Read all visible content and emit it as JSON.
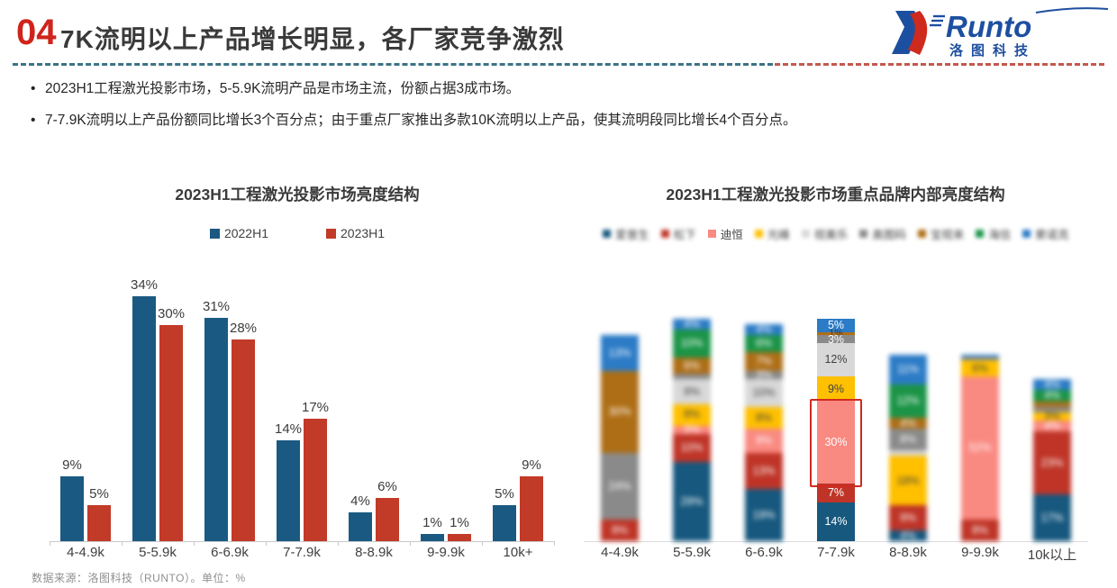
{
  "header": {
    "number": "04",
    "title": "7K流明以上产品增长明显，各厂家竞争激烈"
  },
  "logo": {
    "brand": "Runto",
    "subtitle": "洛图科技",
    "blue": "#1d4fa0",
    "red": "#ce2a1d"
  },
  "bullets": [
    "2023H1工程激光投影市场，5-5.9K流明产品是市场主流，份额占据3成市场。",
    "7-7.9K流明以上产品份额同比增长3个百分点；由于重点厂家推出多款10K流明以上产品，使其流明段同比增长4个百分点。"
  ],
  "footer": "数据来源：洛图科技（RUNTO）。单位：%",
  "chart_data": [
    {
      "type": "bar",
      "title": "2023H1工程激光投影市场亮度结构",
      "categories": [
        "4-4.9k",
        "5-5.9k",
        "6-6.9k",
        "7-7.9k",
        "8-8.9k",
        "9-9.9k",
        "10k+"
      ],
      "series": [
        {
          "name": "2022H1",
          "color": "#1a5a82",
          "values": [
            9,
            34,
            31,
            14,
            4,
            1,
            5
          ]
        },
        {
          "name": "2023H1",
          "color": "#c23a28",
          "values": [
            5,
            30,
            28,
            17,
            6,
            1,
            9
          ]
        }
      ],
      "unit": "%",
      "ylim": [
        0,
        35
      ],
      "grid": false,
      "legend_position": "top",
      "data_labels": true
    },
    {
      "type": "stacked-bar",
      "title": "2023H1工程激光投影市场重点品牌内部亮度结构",
      "categories": [
        "4-4.9k",
        "5-5.9k",
        "6-6.9k",
        "7-7.9k",
        "8-8.9k",
        "9-9.9k",
        "10k以上"
      ],
      "series": [
        {
          "name": "爱普生",
          "blurred": true,
          "color": "#17587e",
          "text": "#ffffff",
          "values": [
            0,
            29,
            19,
            14,
            4,
            0,
            17
          ]
        },
        {
          "name": "松下",
          "blurred": true,
          "color": "#bf3427",
          "text": "#ffffff",
          "values": [
            8,
            10,
            13,
            7,
            9,
            8,
            23
          ]
        },
        {
          "name": "迪恒",
          "blurred": false,
          "color": "#f98a82",
          "text": "#ffffff",
          "values": [
            0,
            3,
            9,
            30,
            0,
            52,
            4
          ]
        },
        {
          "name": "光峰",
          "blurred": true,
          "color": "#ffc000",
          "text": "#404040",
          "values": [
            0,
            8,
            8,
            9,
            18,
            6,
            3
          ]
        },
        {
          "name": "视美乐",
          "blurred": true,
          "color": "#d8d8d8",
          "text": "#404040",
          "values": [
            0,
            9,
            10,
            12,
            2,
            0,
            0
          ]
        },
        {
          "name": "奥图码",
          "blurred": true,
          "color": "#8a8a8a",
          "text": "#ffffff",
          "values": [
            24,
            2,
            3,
            3,
            8,
            1,
            2
          ]
        },
        {
          "name": "宝视来",
          "blurred": true,
          "color": "#ae6e16",
          "text": "#ffffff",
          "values": [
            30,
            6,
            7,
            1,
            4,
            0,
            2
          ]
        },
        {
          "name": "海信",
          "blurred": true,
          "color": "#1b9447",
          "text": "#ffffff",
          "values": [
            0,
            10,
            6,
            0,
            12,
            0,
            4
          ]
        },
        {
          "name": "索诺克",
          "blurred": true,
          "color": "#2b7bc6",
          "text": "#ffffff",
          "values": [
            13,
            4,
            4,
            5,
            11,
            1,
            4
          ]
        }
      ],
      "unit": "%",
      "grid": false,
      "legend_position": "top",
      "sharp_category_index": 3,
      "highlight": {
        "category_index": 3,
        "series": "迪恒",
        "label": "30%",
        "border_color": "#d02a20"
      }
    }
  ],
  "colors": {
    "accent_red": "#ce241c",
    "title_gray": "#3a3a3a",
    "divider_teal": "#3b7386",
    "divider_red": "#c4584d",
    "axis_gray": "#c9c9c9"
  }
}
